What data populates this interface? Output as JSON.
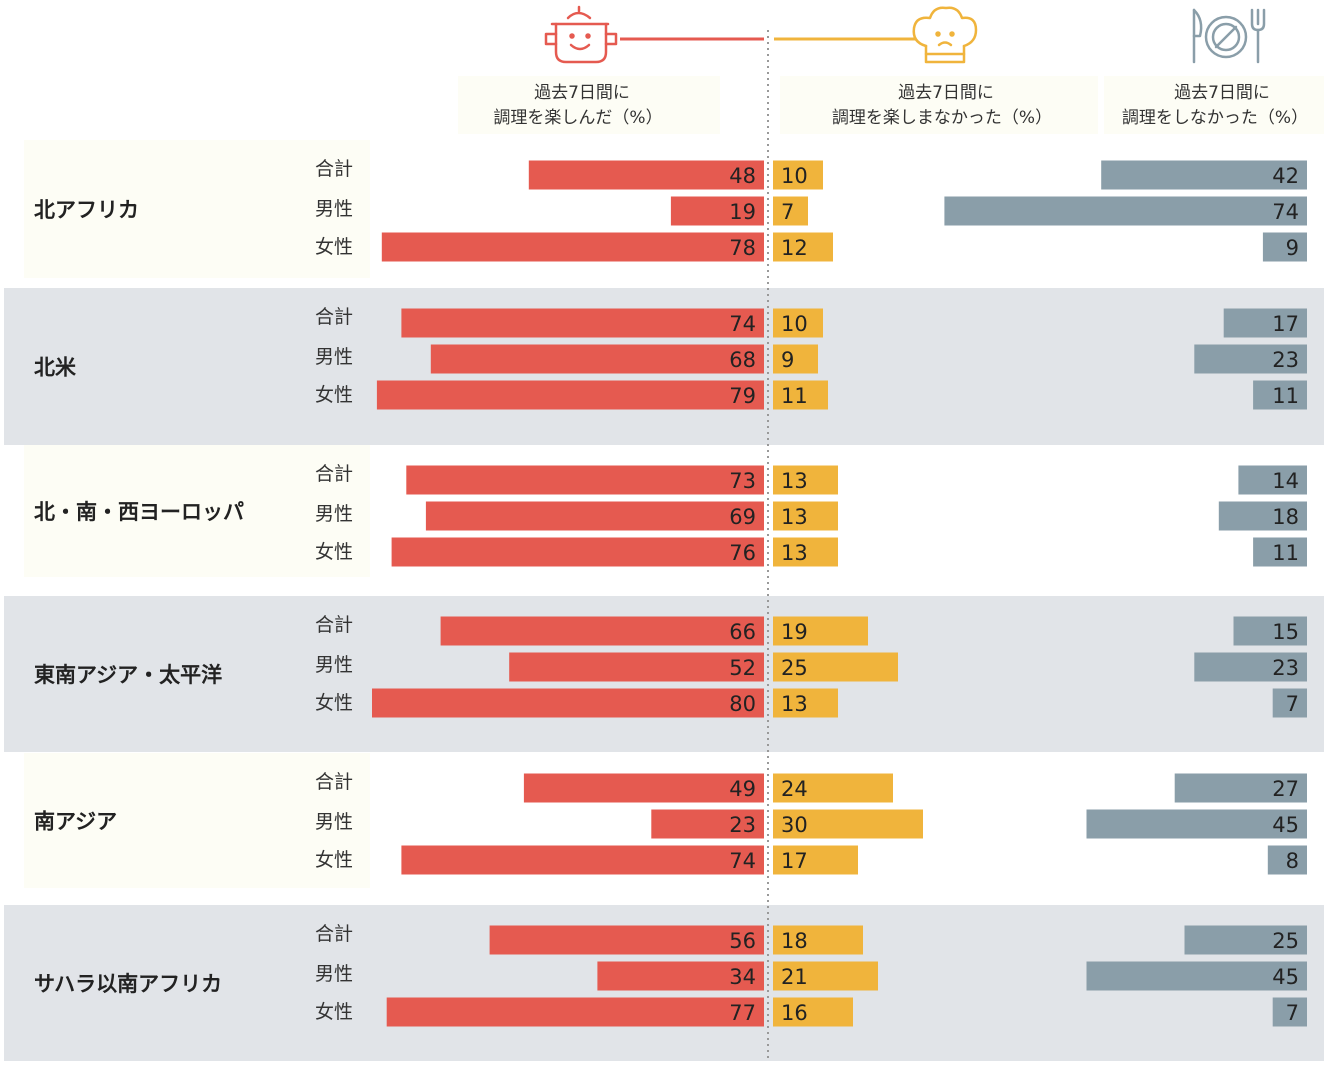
{
  "chart_data": {
    "type": "bar",
    "layout": "diverging-horizontal",
    "columns": [
      {
        "key": "enjoyed",
        "line1": "過去7日間に",
        "line2": "調理を楽しんだ（%）",
        "color": "#e55a50",
        "icon": "cooking-pot-smile-icon"
      },
      {
        "key": "not_enjoyed",
        "line1": "過去7日間に",
        "line2": "調理を楽しまなかった（%）",
        "color": "#f0b43c",
        "icon": "chef-hat-frown-icon"
      },
      {
        "key": "not_cooked",
        "line1": "過去7日間に",
        "line2": "調理をしなかった（%）",
        "color": "#8a9ea9",
        "icon": "plate-cutlery-icon"
      }
    ],
    "row_labels": [
      "合計",
      "男性",
      "女性"
    ],
    "regions": [
      {
        "name": "北アフリカ",
        "rows": [
          {
            "enjoyed": 48,
            "not_enjoyed": 10,
            "not_cooked": 42
          },
          {
            "enjoyed": 19,
            "not_enjoyed": 7,
            "not_cooked": 74
          },
          {
            "enjoyed": 78,
            "not_enjoyed": 12,
            "not_cooked": 9
          }
        ]
      },
      {
        "name": "北米",
        "rows": [
          {
            "enjoyed": 74,
            "not_enjoyed": 10,
            "not_cooked": 17
          },
          {
            "enjoyed": 68,
            "not_enjoyed": 9,
            "not_cooked": 23
          },
          {
            "enjoyed": 79,
            "not_enjoyed": 11,
            "not_cooked": 11
          }
        ]
      },
      {
        "name": "北・南・西ヨーロッパ",
        "rows": [
          {
            "enjoyed": 73,
            "not_enjoyed": 13,
            "not_cooked": 14
          },
          {
            "enjoyed": 69,
            "not_enjoyed": 13,
            "not_cooked": 18
          },
          {
            "enjoyed": 76,
            "not_enjoyed": 13,
            "not_cooked": 11
          }
        ]
      },
      {
        "name": "東南アジア・太平洋",
        "rows": [
          {
            "enjoyed": 66,
            "not_enjoyed": 19,
            "not_cooked": 15
          },
          {
            "enjoyed": 52,
            "not_enjoyed": 25,
            "not_cooked": 23
          },
          {
            "enjoyed": 80,
            "not_enjoyed": 13,
            "not_cooked": 7
          }
        ]
      },
      {
        "name": "南アジア",
        "rows": [
          {
            "enjoyed": 49,
            "not_enjoyed": 24,
            "not_cooked": 27
          },
          {
            "enjoyed": 23,
            "not_enjoyed": 30,
            "not_cooked": 45
          },
          {
            "enjoyed": 74,
            "not_enjoyed": 17,
            "not_cooked": 8
          }
        ]
      },
      {
        "name": "サハラ以南アフリカ",
        "rows": [
          {
            "enjoyed": 56,
            "not_enjoyed": 18,
            "not_cooked": 25
          },
          {
            "enjoyed": 34,
            "not_enjoyed": 21,
            "not_cooked": 45
          },
          {
            "enjoyed": 77,
            "not_enjoyed": 16,
            "not_cooked": 7
          }
        ]
      }
    ],
    "colors": {
      "band_light": "#fdfdf5",
      "band_dark": "#e1e4e8",
      "header_bg": "#fdfdf5",
      "divider": "#999999"
    }
  }
}
